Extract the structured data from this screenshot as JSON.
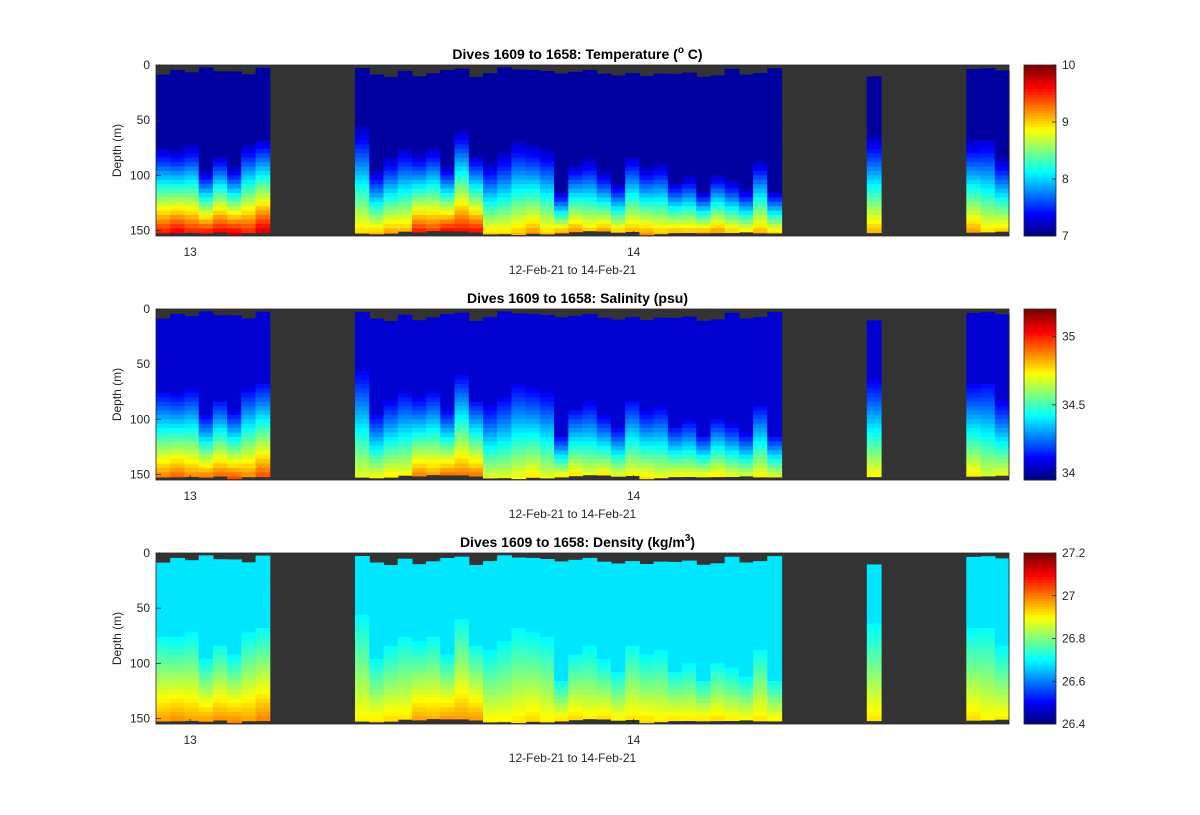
{
  "chart_data": [
    {
      "type": "heatmap",
      "title": "Dives 1609 to 1658: Temperature (",
      "title_sup": "o",
      "title_end": " C)",
      "ylabel": "Depth (m)",
      "xlabel": "12-Feb-21 to 14-Feb-21",
      "x_ticks": [
        "13",
        "14"
      ],
      "y_ticks": [
        "0",
        "50",
        "100",
        "150"
      ],
      "ylim": [
        0,
        155
      ],
      "y_reversed": true,
      "colorbar": {
        "min": 7,
        "max": 10,
        "ticks": [
          "7",
          "8",
          "9",
          "10"
        ],
        "colormap": "jet"
      },
      "background_color": "#333333",
      "profile": {
        "surface": 7.1,
        "thermocline_top": 7.2,
        "bottom": 9.6
      }
    },
    {
      "type": "heatmap",
      "title": "Dives 1609 to 1658: Salinity (psu)",
      "ylabel": "Depth (m)",
      "xlabel": "12-Feb-21 to 14-Feb-21",
      "x_ticks": [
        "13",
        "14"
      ],
      "y_ticks": [
        "0",
        "50",
        "100",
        "150"
      ],
      "ylim": [
        0,
        155
      ],
      "y_reversed": true,
      "colorbar": {
        "min": 33.95,
        "max": 35.2,
        "ticks": [
          "34",
          "34.5",
          "35"
        ],
        "colormap": "jet"
      },
      "background_color": "#333333",
      "profile": {
        "surface": 34.05,
        "thermocline_top": 34.1,
        "bottom": 34.9
      }
    },
    {
      "type": "heatmap",
      "title": "Dives 1609 to 1658: Density (kg/m",
      "title_sup": "3",
      "title_end": ")",
      "ylabel": "Depth (m)",
      "xlabel": "12-Feb-21 to 14-Feb-21",
      "x_ticks": [
        "13",
        "14"
      ],
      "y_ticks": [
        "0",
        "50",
        "100",
        "150"
      ],
      "ylim": [
        0,
        155
      ],
      "y_reversed": true,
      "colorbar": {
        "min": 26.4,
        "max": 27.2,
        "ticks": [
          "26.4",
          "26.6",
          "26.8",
          "27",
          "27.2"
        ],
        "colormap": "jet"
      },
      "background_color": "#333333",
      "profile": {
        "surface": 26.68,
        "thermocline_top": 26.7,
        "bottom": 26.98
      }
    }
  ]
}
